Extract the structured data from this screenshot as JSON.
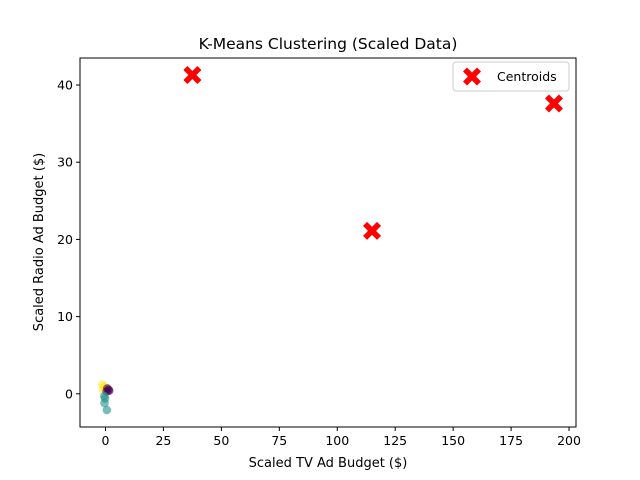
{
  "chart_data": {
    "type": "scatter",
    "title": "K-Means Clustering (Scaled Data)",
    "xlabel": "Scaled TV Ad Budget ($)",
    "ylabel": "Scaled Radio Ad Budget ($)",
    "xlim": [
      -11,
      203
    ],
    "ylim": [
      -4.3,
      43.5
    ],
    "xticks": [
      0,
      25,
      50,
      75,
      100,
      125,
      150,
      175,
      200
    ],
    "yticks": [
      0,
      10,
      20,
      30,
      40
    ],
    "grid": false,
    "legend": {
      "placement": "top-right",
      "entries": [
        "Centroids"
      ]
    },
    "colors": {
      "cluster_purple": "#440154",
      "cluster_teal": "#21918c",
      "cluster_yellow": "#fde725",
      "centroid": "#ff0000"
    },
    "points": [
      {
        "x": -1.3,
        "y": 1.2,
        "cluster": "cluster_yellow"
      },
      {
        "x": -0.6,
        "y": 0.9,
        "cluster": "cluster_yellow"
      },
      {
        "x": -1.0,
        "y": 0.5,
        "cluster": "cluster_yellow"
      },
      {
        "x": 0.2,
        "y": 0.8,
        "cluster": "cluster_yellow"
      },
      {
        "x": 0.8,
        "y": 0.7,
        "cluster": "cluster_purple"
      },
      {
        "x": 1.3,
        "y": 0.5,
        "cluster": "cluster_purple"
      },
      {
        "x": 1.6,
        "y": 0.4,
        "cluster": "cluster_purple"
      },
      {
        "x": 0.5,
        "y": 0.3,
        "cluster": "cluster_purple"
      },
      {
        "x": -0.5,
        "y": -0.3,
        "cluster": "cluster_teal"
      },
      {
        "x": -0.2,
        "y": -0.6,
        "cluster": "cluster_teal"
      },
      {
        "x": -0.4,
        "y": -1.2,
        "cluster": "cluster_teal"
      },
      {
        "x": 0.6,
        "y": -2.1,
        "cluster": "cluster_teal"
      }
    ],
    "centroids": [
      {
        "x": 37.5,
        "y": 41.3
      },
      {
        "x": 115.0,
        "y": 21.1
      },
      {
        "x": 193.5,
        "y": 37.6
      }
    ]
  }
}
